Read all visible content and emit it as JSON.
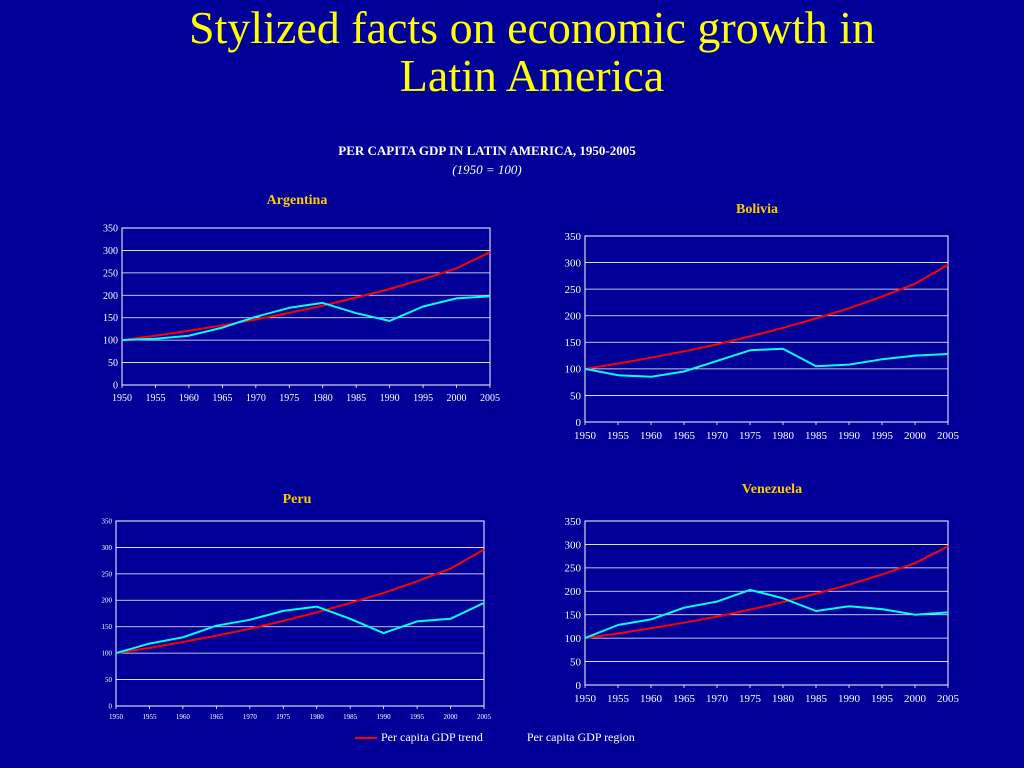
{
  "slide": {
    "title_line1": "Stylized facts on economic growth in",
    "title_line2": "Latin America"
  },
  "figure": {
    "title": "PER CAPITA GDP IN LATIN AMERICA, 1950-2005",
    "subtitle": "(1950 = 100)"
  },
  "legend": {
    "trend_label": "Per capita GDP trend",
    "region_label": "Per capita GDP region"
  },
  "colors": {
    "background": "#000099",
    "title": "#ffff00",
    "chart_title": "#ffcc00",
    "trend": "#ff0000",
    "region": "#00ffff",
    "axes": "#ffffff"
  },
  "chart_data": [
    {
      "type": "line",
      "title": "Argentina",
      "x": [
        1950,
        1955,
        1960,
        1965,
        1970,
        1975,
        1980,
        1985,
        1990,
        1995,
        2000,
        2005
      ],
      "x_ticks": [
        "1950",
        "1955",
        "1960",
        "1965",
        "1970",
        "1975",
        "1980",
        "1985",
        "1990",
        "1995",
        "2000",
        "2005"
      ],
      "ylim": [
        0,
        350
      ],
      "y_ticks": [
        "0",
        "50",
        "100",
        "150",
        "200",
        "250",
        "300",
        "350"
      ],
      "series": [
        {
          "name": "Per capita GDP trend",
          "values": [
            100,
            110,
            121,
            133,
            146,
            161,
            177,
            195,
            214,
            236,
            260,
            296
          ]
        },
        {
          "name": "Per capita GDP region",
          "values": [
            100,
            103,
            110,
            128,
            152,
            172,
            183,
            160,
            143,
            175,
            193,
            198
          ]
        }
      ]
    },
    {
      "type": "line",
      "title": "Bolivia",
      "x": [
        1950,
        1955,
        1960,
        1965,
        1970,
        1975,
        1980,
        1985,
        1990,
        1995,
        2000,
        2005
      ],
      "x_ticks": [
        "1950",
        "1955",
        "1960",
        "1965",
        "1970",
        "1975",
        "1980",
        "1985",
        "1990",
        "1995",
        "2000",
        "2005"
      ],
      "ylim": [
        0,
        350
      ],
      "y_ticks": [
        "0",
        "50",
        "100",
        "150",
        "200",
        "250",
        "300",
        "350"
      ],
      "series": [
        {
          "name": "Per capita GDP trend",
          "values": [
            100,
            110,
            121,
            133,
            146,
            161,
            177,
            195,
            214,
            236,
            260,
            296
          ]
        },
        {
          "name": "Per capita GDP region",
          "values": [
            100,
            88,
            85,
            95,
            115,
            135,
            138,
            105,
            108,
            118,
            125,
            128
          ]
        }
      ]
    },
    {
      "type": "line",
      "title": "Peru",
      "x": [
        1950,
        1955,
        1960,
        1965,
        1970,
        1975,
        1980,
        1985,
        1990,
        1995,
        2000,
        2005
      ],
      "x_ticks": [
        "1950",
        "1955",
        "1960",
        "1965",
        "1970",
        "1975",
        "1980",
        "1985",
        "1990",
        "1995",
        "2000",
        "2005"
      ],
      "ylim": [
        0,
        350
      ],
      "y_ticks": [
        "0",
        "50",
        "100",
        "150",
        "200",
        "250",
        "300",
        "350"
      ],
      "series": [
        {
          "name": "Per capita GDP trend",
          "values": [
            100,
            110,
            121,
            133,
            146,
            161,
            177,
            195,
            214,
            236,
            260,
            296
          ]
        },
        {
          "name": "Per capita GDP region",
          "values": [
            100,
            118,
            130,
            152,
            163,
            180,
            188,
            165,
            138,
            160,
            165,
            195
          ]
        }
      ]
    },
    {
      "type": "line",
      "title": "Venezuela",
      "x": [
        1950,
        1955,
        1960,
        1965,
        1970,
        1975,
        1980,
        1985,
        1990,
        1995,
        2000,
        2005
      ],
      "x_ticks": [
        "1950",
        "1955",
        "1960",
        "1965",
        "1970",
        "1975",
        "1980",
        "1985",
        "1990",
        "1995",
        "2000",
        "2005"
      ],
      "ylim": [
        0,
        350
      ],
      "y_ticks": [
        "0",
        "50",
        "100",
        "150",
        "200",
        "250",
        "300",
        "350"
      ],
      "series": [
        {
          "name": "Per capita GDP trend",
          "values": [
            100,
            110,
            121,
            133,
            146,
            161,
            177,
            195,
            214,
            236,
            260,
            296
          ]
        },
        {
          "name": "Per capita GDP region",
          "values": [
            100,
            128,
            140,
            165,
            178,
            203,
            185,
            158,
            168,
            162,
            150,
            155
          ]
        }
      ]
    }
  ]
}
